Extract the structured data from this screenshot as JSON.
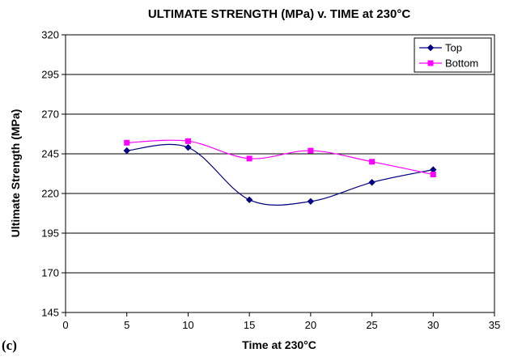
{
  "panel_label": "(c)",
  "chart_data": {
    "type": "line",
    "title": "ULTIMATE STRENGTH (MPa) v. TIME at 230°C",
    "xlabel": "Time at 230°C",
    "ylabel": "Ultimate Strength (MPa)",
    "xlim": [
      0,
      35
    ],
    "ylim": [
      145,
      320
    ],
    "xticks": [
      "0",
      "5",
      "10",
      "15",
      "20",
      "25",
      "30",
      "35"
    ],
    "yticks": [
      "145",
      "170",
      "195",
      "220",
      "245",
      "270",
      "295",
      "320"
    ],
    "grid": "horizontal",
    "legend_position": "top-right",
    "x": [
      5,
      10,
      15,
      20,
      25,
      30
    ],
    "series": [
      {
        "name": "Top",
        "color": "#000080",
        "marker": "diamond",
        "values": [
          247,
          249,
          216,
          215,
          227,
          235
        ]
      },
      {
        "name": "Bottom",
        "color": "#FF00FF",
        "marker": "square",
        "values": [
          252,
          253,
          242,
          247,
          240,
          232
        ]
      }
    ]
  }
}
